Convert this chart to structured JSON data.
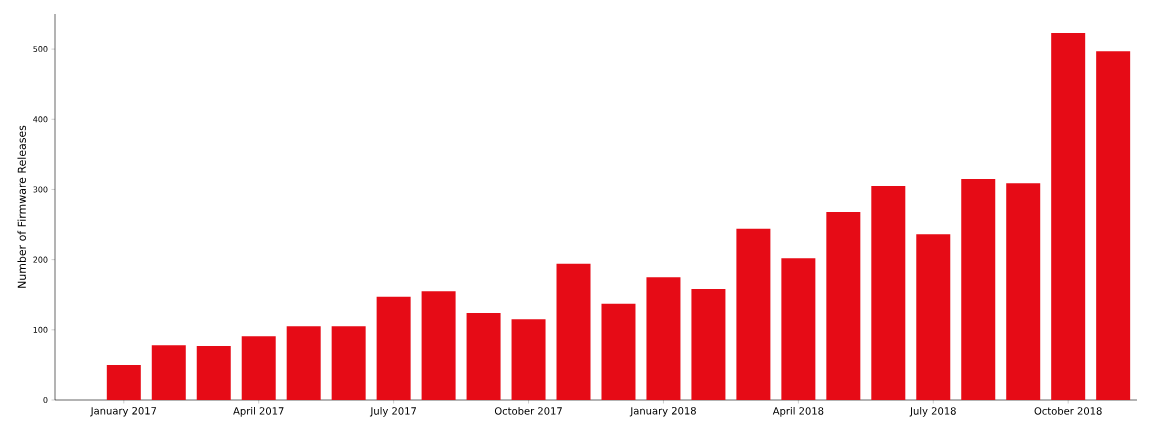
{
  "chart_data": {
    "type": "bar",
    "ylabel": "Number of Firmware Releases",
    "categories": [
      "January 2017",
      null,
      null,
      "April 2017",
      null,
      null,
      "July 2017",
      null,
      null,
      "October 2017",
      null,
      null,
      "January 2018",
      null,
      null,
      "April 2018",
      null,
      null,
      "July 2018",
      null,
      null,
      "October 2018",
      null
    ],
    "values": [
      50,
      78,
      77,
      91,
      105,
      105,
      147,
      155,
      124,
      115,
      194,
      137,
      175,
      158,
      244,
      202,
      268,
      305,
      236,
      315,
      309,
      523,
      497
    ],
    "color": "#e60b16",
    "ylim": [
      0,
      550
    ],
    "yticks": [
      0,
      100,
      200,
      300,
      400,
      500
    ]
  }
}
